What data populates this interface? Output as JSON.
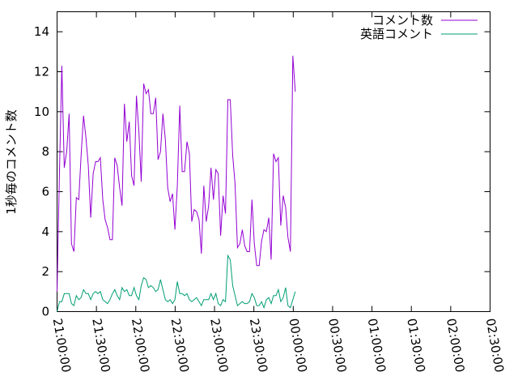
{
  "chart_data": {
    "type": "line",
    "title": "",
    "xlabel": "",
    "ylabel": "1秒毎のコメント数",
    "ylim": [
      0,
      15
    ],
    "yticks": [
      0,
      2,
      4,
      6,
      8,
      10,
      12,
      14
    ],
    "xlim": [
      "21:00:00",
      "02:30:00"
    ],
    "xticks": [
      "21:00:00",
      "21:30:00",
      "22:00:00",
      "22:30:00",
      "23:00:00",
      "23:30:00",
      "00:00:00",
      "00:30:00",
      "01:00:00",
      "01:30:00",
      "02:00:00",
      "02:30:00"
    ],
    "grid": false,
    "legend_position": "top-right",
    "series": [
      {
        "name": "コメント数",
        "color": "#9400d3",
        "points": [
          [
            "21:00:00",
            1.0
          ],
          [
            "21:01:50",
            7.0
          ],
          [
            "21:03:40",
            12.3
          ],
          [
            "21:05:30",
            7.2
          ],
          [
            "21:07:20",
            8.0
          ],
          [
            "21:09:10",
            9.9
          ],
          [
            "21:11:00",
            3.4
          ],
          [
            "21:12:50",
            3.0
          ],
          [
            "21:14:40",
            5.7
          ],
          [
            "21:16:30",
            5.6
          ],
          [
            "21:18:20",
            7.8
          ],
          [
            "21:20:10",
            9.8
          ],
          [
            "21:22:00",
            8.7
          ],
          [
            "21:23:50",
            7.3
          ],
          [
            "21:25:40",
            4.7
          ],
          [
            "21:27:30",
            6.9
          ],
          [
            "21:29:20",
            7.5
          ],
          [
            "21:31:10",
            7.5
          ],
          [
            "21:33:00",
            7.7
          ],
          [
            "21:34:50",
            5.6
          ],
          [
            "21:36:40",
            4.6
          ],
          [
            "21:38:30",
            4.2
          ],
          [
            "21:40:20",
            3.6
          ],
          [
            "21:42:10",
            3.6
          ],
          [
            "21:44:00",
            7.7
          ],
          [
            "21:45:50",
            7.3
          ],
          [
            "21:47:40",
            6.2
          ],
          [
            "21:49:30",
            5.3
          ],
          [
            "21:51:20",
            10.4
          ],
          [
            "21:53:10",
            8.5
          ],
          [
            "21:55:00",
            9.5
          ],
          [
            "21:56:50",
            6.8
          ],
          [
            "21:58:40",
            6.3
          ],
          [
            "22:00:30",
            10.8
          ],
          [
            "22:02:20",
            9.0
          ],
          [
            "22:04:10",
            6.5
          ],
          [
            "22:06:00",
            11.4
          ],
          [
            "22:07:50",
            10.9
          ],
          [
            "22:09:40",
            11.1
          ],
          [
            "22:11:30",
            9.9
          ],
          [
            "22:13:20",
            9.9
          ],
          [
            "22:15:10",
            10.7
          ],
          [
            "22:17:00",
            7.6
          ],
          [
            "22:18:50",
            8.0
          ],
          [
            "22:20:40",
            9.9
          ],
          [
            "22:22:30",
            8.6
          ],
          [
            "22:24:20",
            6.2
          ],
          [
            "22:26:10",
            5.5
          ],
          [
            "22:28:00",
            5.9
          ],
          [
            "22:29:50",
            4.1
          ],
          [
            "22:31:40",
            6.3
          ],
          [
            "22:33:30",
            10.3
          ],
          [
            "22:35:20",
            7.0
          ],
          [
            "22:37:10",
            7.0
          ],
          [
            "22:39:00",
            8.5
          ],
          [
            "22:40:50",
            7.9
          ],
          [
            "22:42:40",
            4.5
          ],
          [
            "22:44:30",
            5.1
          ],
          [
            "22:46:20",
            5.0
          ],
          [
            "22:48:10",
            4.6
          ],
          [
            "22:50:00",
            2.9
          ],
          [
            "22:51:50",
            6.3
          ],
          [
            "22:53:40",
            4.5
          ],
          [
            "22:55:30",
            5.3
          ],
          [
            "22:57:20",
            7.2
          ],
          [
            "22:59:10",
            5.6
          ],
          [
            "23:01:00",
            7.1
          ],
          [
            "23:02:50",
            6.9
          ],
          [
            "23:04:40",
            3.8
          ],
          [
            "23:06:30",
            5.8
          ],
          [
            "23:08:20",
            4.9
          ],
          [
            "23:10:10",
            10.6
          ],
          [
            "23:12:00",
            10.6
          ],
          [
            "23:13:50",
            7.8
          ],
          [
            "23:15:40",
            6.4
          ],
          [
            "23:17:30",
            3.2
          ],
          [
            "23:19:20",
            3.4
          ],
          [
            "23:21:10",
            4.1
          ],
          [
            "23:23:00",
            3.3
          ],
          [
            "23:24:50",
            3.0
          ],
          [
            "23:26:40",
            3.0
          ],
          [
            "23:28:30",
            5.6
          ],
          [
            "23:30:20",
            3.4
          ],
          [
            "23:32:10",
            2.3
          ],
          [
            "23:34:00",
            2.3
          ],
          [
            "23:35:50",
            3.5
          ],
          [
            "23:37:40",
            4.1
          ],
          [
            "23:39:30",
            4.0
          ],
          [
            "23:41:20",
            4.7
          ],
          [
            "23:43:10",
            2.6
          ],
          [
            "23:45:00",
            7.9
          ],
          [
            "23:46:50",
            7.5
          ],
          [
            "23:48:40",
            7.7
          ],
          [
            "23:50:30",
            4.3
          ],
          [
            "23:52:20",
            5.8
          ],
          [
            "23:54:10",
            5.2
          ],
          [
            "23:56:00",
            3.7
          ],
          [
            "23:57:50",
            3.0
          ],
          [
            "23:59:40",
            12.8
          ],
          [
            "00:01:30",
            11.0
          ]
        ]
      },
      {
        "name": "英語コメント",
        "color": "#009e73",
        "points": [
          [
            "21:00:00",
            0.0
          ],
          [
            "21:01:50",
            0.5
          ],
          [
            "21:03:40",
            0.5
          ],
          [
            "21:05:30",
            0.9
          ],
          [
            "21:07:20",
            0.9
          ],
          [
            "21:09:10",
            0.9
          ],
          [
            "21:11:00",
            0.4
          ],
          [
            "21:12:50",
            0.3
          ],
          [
            "21:14:40",
            0.8
          ],
          [
            "21:16:30",
            0.6
          ],
          [
            "21:18:20",
            0.7
          ],
          [
            "21:20:10",
            1.1
          ],
          [
            "21:22:00",
            0.9
          ],
          [
            "21:23:50",
            0.9
          ],
          [
            "21:25:40",
            0.6
          ],
          [
            "21:27:30",
            0.9
          ],
          [
            "21:29:20",
            1.0
          ],
          [
            "21:31:10",
            0.9
          ],
          [
            "21:33:00",
            1.0
          ],
          [
            "21:34:50",
            0.6
          ],
          [
            "21:36:40",
            0.5
          ],
          [
            "21:38:30",
            0.4
          ],
          [
            "21:40:20",
            0.6
          ],
          [
            "21:42:10",
            0.9
          ],
          [
            "21:44:00",
            1.1
          ],
          [
            "21:45:50",
            0.8
          ],
          [
            "21:47:40",
            0.6
          ],
          [
            "21:49:30",
            1.2
          ],
          [
            "21:51:20",
            1.0
          ],
          [
            "21:53:10",
            1.1
          ],
          [
            "21:55:00",
            0.8
          ],
          [
            "21:56:50",
            0.8
          ],
          [
            "21:58:40",
            1.2
          ],
          [
            "22:00:30",
            0.8
          ],
          [
            "22:02:20",
            0.6
          ],
          [
            "22:04:10",
            1.3
          ],
          [
            "22:06:00",
            1.7
          ],
          [
            "22:07:50",
            1.6
          ],
          [
            "22:09:40",
            1.2
          ],
          [
            "22:11:30",
            1.3
          ],
          [
            "22:13:20",
            1.2
          ],
          [
            "22:15:10",
            1.0
          ],
          [
            "22:17:00",
            1.1
          ],
          [
            "22:18:50",
            1.6
          ],
          [
            "22:20:40",
            1.1
          ],
          [
            "22:22:30",
            0.6
          ],
          [
            "22:24:20",
            0.5
          ],
          [
            "22:26:10",
            0.6
          ],
          [
            "22:28:00",
            0.4
          ],
          [
            "22:29:50",
            0.6
          ],
          [
            "22:31:40",
            1.5
          ],
          [
            "22:33:30",
            0.9
          ],
          [
            "22:35:20",
            0.9
          ],
          [
            "22:37:10",
            0.8
          ],
          [
            "22:39:00",
            0.9
          ],
          [
            "22:40:50",
            0.6
          ],
          [
            "22:42:40",
            0.5
          ],
          [
            "22:44:30",
            0.6
          ],
          [
            "22:46:20",
            0.7
          ],
          [
            "22:48:10",
            0.5
          ],
          [
            "22:50:00",
            0.3
          ],
          [
            "22:51:50",
            0.6
          ],
          [
            "22:53:40",
            0.6
          ],
          [
            "22:55:30",
            0.6
          ],
          [
            "22:57:20",
            0.9
          ],
          [
            "22:59:10",
            0.6
          ],
          [
            "23:01:00",
            0.9
          ],
          [
            "23:02:50",
            0.4
          ],
          [
            "23:04:40",
            0.3
          ],
          [
            "23:06:30",
            0.6
          ],
          [
            "23:08:20",
            0.5
          ],
          [
            "23:10:10",
            2.8
          ],
          [
            "23:12:00",
            2.6
          ],
          [
            "23:13:50",
            1.3
          ],
          [
            "23:15:40",
            0.8
          ],
          [
            "23:17:30",
            0.3
          ],
          [
            "23:19:20",
            0.4
          ],
          [
            "23:21:10",
            0.5
          ],
          [
            "23:23:00",
            0.4
          ],
          [
            "23:24:50",
            0.4
          ],
          [
            "23:26:40",
            0.5
          ],
          [
            "23:28:30",
            0.9
          ],
          [
            "23:30:20",
            0.7
          ],
          [
            "23:32:10",
            0.3
          ],
          [
            "23:34:00",
            0.3
          ],
          [
            "23:35:50",
            0.5
          ],
          [
            "23:37:40",
            0.2
          ],
          [
            "23:39:30",
            0.6
          ],
          [
            "23:41:20",
            0.7
          ],
          [
            "23:43:10",
            0.4
          ],
          [
            "23:45:00",
            0.8
          ],
          [
            "23:46:50",
            0.8
          ],
          [
            "23:48:40",
            1.1
          ],
          [
            "23:50:30",
            0.5
          ],
          [
            "23:52:20",
            0.7
          ],
          [
            "23:54:10",
            1.2
          ],
          [
            "23:56:00",
            0.3
          ],
          [
            "23:57:50",
            0.2
          ],
          [
            "23:59:40",
            0.6
          ],
          [
            "00:01:30",
            1.0
          ]
        ]
      }
    ]
  }
}
